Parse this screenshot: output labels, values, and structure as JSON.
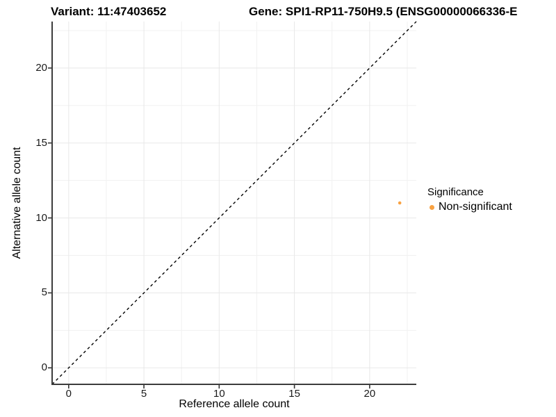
{
  "header": {
    "variant_title": "Variant: 11:47403652",
    "gene_title": "Gene: SPI1-RP11-750H9.5 (ENSG00000066336-E"
  },
  "chart_data": {
    "type": "scatter",
    "xlabel": "Reference allele count",
    "ylabel": "Alternative allele count",
    "xlim": [
      -1.1,
      23.1
    ],
    "ylim": [
      -1.1,
      23.1
    ],
    "x_ticks": [
      0,
      5,
      10,
      15,
      20
    ],
    "y_ticks": [
      0,
      5,
      10,
      15,
      20
    ],
    "minor_ticks": [
      2.5,
      7.5,
      12.5,
      17.5,
      22.5
    ],
    "grid": "major and minor gridlines on white background",
    "identity_line": {
      "style": "dashed",
      "color": "#000000",
      "from": [
        -1.1,
        -1.1
      ],
      "to": [
        23.1,
        23.1
      ]
    },
    "series": [
      {
        "name": "Non-significant",
        "color": "#F9A242",
        "points": [
          {
            "x": 22,
            "y": 11
          }
        ]
      }
    ],
    "legend": {
      "title": "Significance",
      "position": "right",
      "items": [
        {
          "label": "Non-significant",
          "color": "#F9A242"
        }
      ]
    }
  },
  "style": {
    "point_color": "#F9A242",
    "axis_line_color": "#3C3C3C",
    "tick_color": "#333333",
    "grid_major_color": "#E8E8E8",
    "grid_minor_color": "#F1F1F1",
    "dashed_line_color": "#000000",
    "background": "#FFFFFF"
  }
}
